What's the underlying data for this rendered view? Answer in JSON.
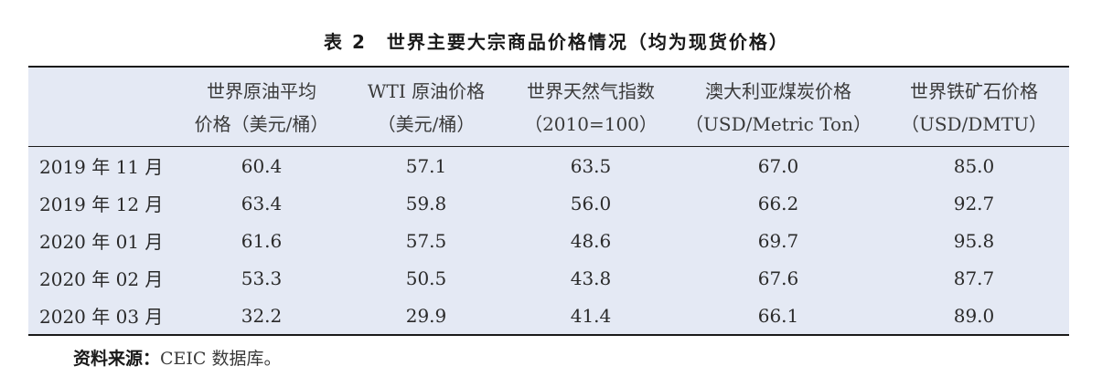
{
  "caption": "表 2　世界主要大宗商品价格情况（均为现货价格）",
  "headers": [
    {
      "l1": "",
      "l2": ""
    },
    {
      "l1": "世界原油平均",
      "l2": "价格（美元/桶）"
    },
    {
      "l1": "WTI 原油价格",
      "l2": "（美元/桶）"
    },
    {
      "l1": "世界天然气指数",
      "l2": "（2010=100）"
    },
    {
      "l1": "澳大利亚煤炭价格",
      "l2": "（USD/Metric Ton）"
    },
    {
      "l1": "世界铁矿石价格",
      "l2": "（USD/DMTU）"
    }
  ],
  "rows": [
    {
      "label": "2019 年 11 月",
      "values": [
        "60.4",
        "57.1",
        "63.5",
        "67.0",
        "85.0"
      ]
    },
    {
      "label": "2019 年 12 月",
      "values": [
        "63.4",
        "59.8",
        "56.0",
        "66.2",
        "92.7"
      ]
    },
    {
      "label": "2020 年 01 月",
      "values": [
        "61.6",
        "57.5",
        "48.6",
        "69.7",
        "95.8"
      ]
    },
    {
      "label": "2020 年 02 月",
      "values": [
        "53.3",
        "50.5",
        "43.8",
        "67.6",
        "87.7"
      ]
    },
    {
      "label": "2020 年 03 月",
      "values": [
        "32.2",
        "29.9",
        "41.4",
        "66.1",
        "89.0"
      ]
    }
  ],
  "source": {
    "label": "资料来源：",
    "text": "CEIC 数据库。"
  }
}
